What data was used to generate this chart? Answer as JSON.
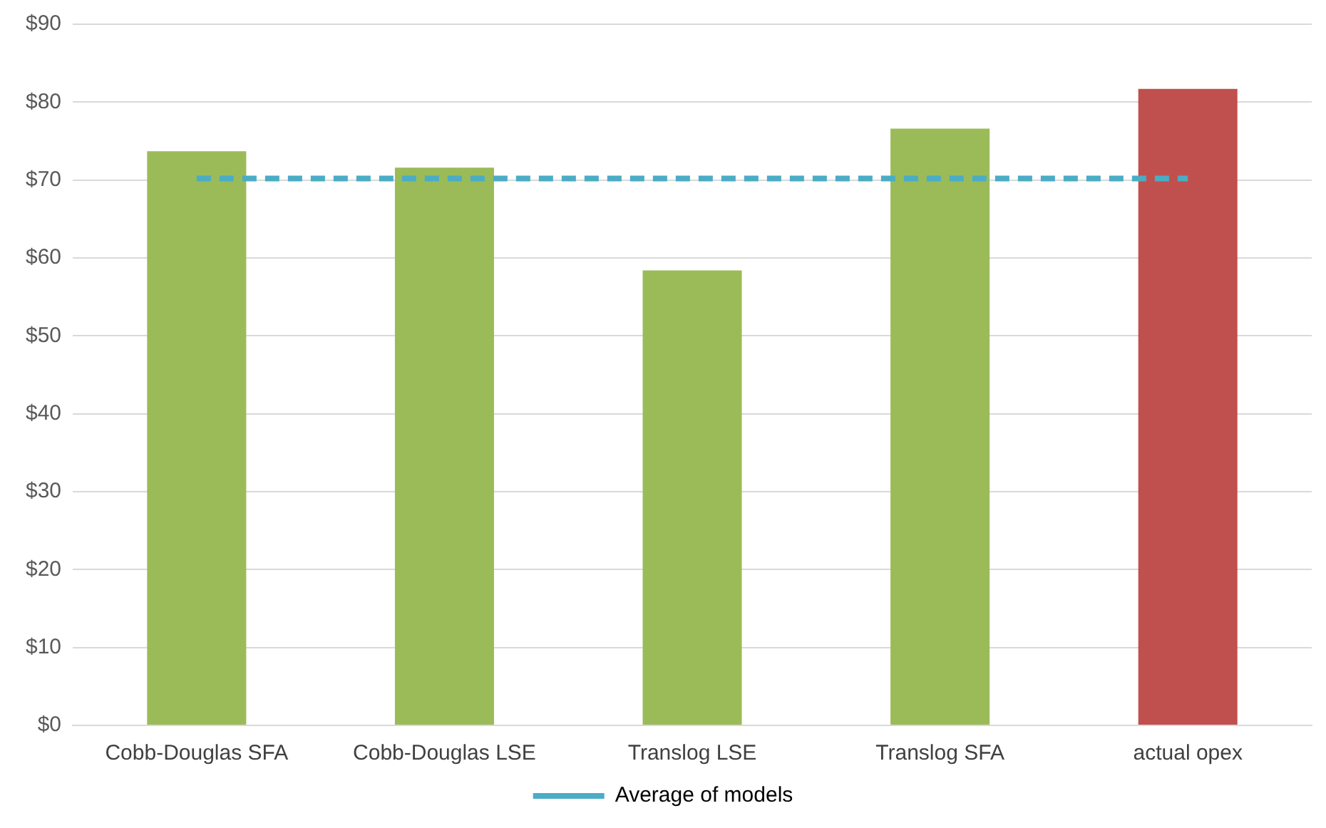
{
  "chart_data": {
    "type": "bar",
    "categories": [
      "Cobb-Douglas SFA",
      "Cobb-Douglas LSE",
      "Translog LSE",
      "Translog SFA",
      "actual opex"
    ],
    "series": [
      {
        "colors": [
          "#9bbb59",
          "#9bbb59",
          "#9bbb59",
          "#9bbb59",
          "#c0504d"
        ],
        "values": [
          73.7,
          71.6,
          58.4,
          76.6,
          81.7
        ]
      },
      {
        "type": "line",
        "name": "Average of models",
        "color": "#4bacc6",
        "line_style": "dashed",
        "marker": "none",
        "values": [
          70.2,
          70.2,
          70.2,
          70.2,
          70.2
        ]
      }
    ],
    "ylim": [
      0,
      90
    ],
    "yticks": [
      {
        "value": 0,
        "label": "$0"
      },
      {
        "value": 10,
        "label": "$10"
      },
      {
        "value": 20,
        "label": "$20"
      },
      {
        "value": 30,
        "label": "$30"
      },
      {
        "value": 40,
        "label": "$40"
      },
      {
        "value": 50,
        "label": "$50"
      },
      {
        "value": 60,
        "label": "$60"
      },
      {
        "value": 70,
        "label": "$70"
      },
      {
        "value": 80,
        "label": "$80"
      },
      {
        "value": 90,
        "label": "$90"
      }
    ],
    "grid": "y",
    "legend": "bottom"
  }
}
